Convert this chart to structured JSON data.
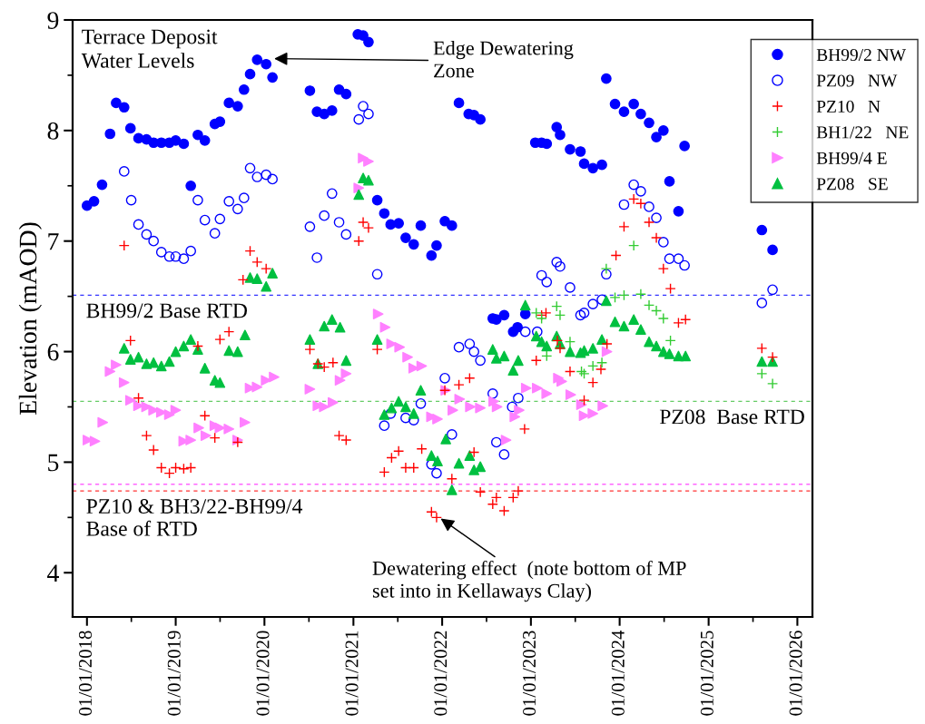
{
  "chart_data": {
    "type": "scatter",
    "ylabel": "Elevation (mAOD)",
    "xlim": [
      "2017-11-03",
      "2026-03-04"
    ],
    "ylim": [
      3.6,
      9
    ],
    "xticks": [
      {
        "value": "2018-01-01",
        "label": "01/01/2018"
      },
      {
        "value": "2019-01-01",
        "label": "01/01/2019"
      },
      {
        "value": "2020-01-01",
        "label": "01/01/2020"
      },
      {
        "value": "2021-01-01",
        "label": "01/01/2021"
      },
      {
        "value": "2022-01-01",
        "label": "01/01/2022"
      },
      {
        "value": "2023-01-01",
        "label": "01/01/2023"
      },
      {
        "value": "2024-01-01",
        "label": "01/01/2024"
      },
      {
        "value": "2025-01-01",
        "label": "01/01/2025"
      },
      {
        "value": "2026-01-01",
        "label": "01/01/2026"
      }
    ],
    "yticks": [
      4,
      5,
      6,
      7,
      8,
      9
    ],
    "grid": false,
    "legend": "top right",
    "series": [
      {
        "name": "BH99/2 NW",
        "color": "#0000ff",
        "marker": "circle",
        "x": [
          "2018-01-01",
          "2018-01-30",
          "2018-03-04",
          "2018-04-06",
          "2018-05-01",
          "2018-06-03",
          "2018-06-29",
          "2018-08-01",
          "2018-09-03",
          "2018-10-02",
          "2018-11-03",
          "2018-12-06",
          "2019-01-01",
          "2019-02-03",
          "2019-03-04",
          "2019-04-02",
          "2019-05-01",
          "2019-06-11",
          "2019-07-02",
          "2019-08-08",
          "2019-09-13",
          "2019-10-09",
          "2019-11-03",
          "2019-12-02",
          "2020-01-08",
          "2020-02-03",
          "2020-07-06",
          "2020-08-04",
          "2020-09-03",
          "2020-10-05",
          "2020-11-03",
          "2020-12-02",
          "2021-01-19",
          "2021-02-10",
          "2021-03-04",
          "2021-04-09",
          "2021-05-08",
          "2021-06-03",
          "2021-07-06",
          "2021-08-04",
          "2021-09-06",
          "2021-10-05",
          "2021-11-18",
          "2021-12-09",
          "2022-01-12",
          "2022-02-10",
          "2022-03-11",
          "2022-04-20",
          "2022-05-12",
          "2022-06-07",
          "2022-07-28",
          "2022-08-12",
          "2022-09-13",
          "2022-10-20",
          "2022-11-07",
          "2022-12-09",
          "2023-01-19",
          "2023-02-14",
          "2023-03-07",
          "2023-04-17",
          "2023-05-01",
          "2023-06-11",
          "2023-07-24",
          "2023-08-08",
          "2023-09-13",
          "2023-10-20",
          "2023-11-07",
          "2023-12-13",
          "2024-01-19",
          "2024-02-28",
          "2024-03-28",
          "2024-05-01",
          "2024-05-31",
          "2024-06-29",
          "2024-07-24",
          "2024-08-30",
          "2024-09-24",
          "2025-08-08",
          "2025-09-21"
        ],
        "values": [
          7.32,
          7.36,
          7.51,
          7.97,
          8.25,
          8.21,
          8.02,
          7.93,
          7.92,
          7.89,
          7.89,
          7.89,
          7.91,
          7.88,
          7.5,
          7.96,
          7.91,
          8.06,
          8.08,
          8.25,
          8.22,
          8.37,
          8.51,
          8.64,
          8.6,
          8.48,
          8.36,
          8.17,
          8.15,
          8.18,
          8.37,
          8.33,
          8.87,
          8.86,
          8.8,
          7.37,
          7.25,
          7.15,
          7.16,
          7.03,
          6.97,
          7.14,
          6.87,
          6.96,
          7.18,
          7.14,
          8.25,
          8.15,
          8.14,
          8.1,
          6.3,
          6.29,
          6.33,
          6.18,
          6.22,
          6.34,
          7.89,
          7.89,
          7.88,
          8.03,
          7.96,
          7.83,
          7.81,
          7.7,
          7.66,
          7.69,
          8.47,
          8.24,
          8.17,
          8.24,
          8.15,
          8.07,
          7.94,
          8.0,
          7.54,
          7.27,
          7.86,
          7.1,
          6.92
        ]
      },
      {
        "name": "PZ09   NW",
        "color": "#0000ff",
        "marker": "circle-open",
        "x": [
          "2018-06-03",
          "2018-07-02",
          "2018-08-01",
          "2018-09-03",
          "2018-10-02",
          "2018-11-03",
          "2018-12-06",
          "2019-01-01",
          "2019-02-03",
          "2019-03-04",
          "2019-04-02",
          "2019-05-01",
          "2019-06-11",
          "2019-07-02",
          "2019-08-08",
          "2019-09-13",
          "2019-10-09",
          "2019-11-03",
          "2019-12-02",
          "2020-01-08",
          "2020-02-03",
          "2020-07-06",
          "2020-08-04",
          "2020-09-03",
          "2020-10-05",
          "2020-11-03",
          "2020-12-02",
          "2021-01-23",
          "2021-02-10",
          "2021-03-04",
          "2021-04-09",
          "2021-05-08",
          "2021-06-03",
          "2021-08-04",
          "2021-09-06",
          "2021-10-05",
          "2021-11-18",
          "2021-12-09",
          "2022-01-12",
          "2022-02-10",
          "2022-03-11",
          "2022-04-24",
          "2022-05-12",
          "2022-06-07",
          "2022-07-28",
          "2022-08-12",
          "2022-09-13",
          "2022-10-16",
          "2022-11-10",
          "2022-12-09",
          "2023-01-27",
          "2023-02-14",
          "2023-03-07",
          "2023-04-17",
          "2023-05-01",
          "2023-06-11",
          "2023-07-24",
          "2023-08-08",
          "2023-09-13",
          "2023-10-20",
          "2023-11-07",
          "2024-01-19",
          "2024-02-28",
          "2024-03-28",
          "2024-05-01",
          "2024-05-31",
          "2024-06-29",
          "2024-07-24",
          "2024-08-30",
          "2024-09-24",
          "2025-08-08",
          "2025-09-21"
        ],
        "values": [
          7.63,
          7.37,
          7.15,
          7.06,
          7.0,
          6.9,
          6.86,
          6.86,
          6.84,
          6.91,
          7.37,
          7.19,
          7.07,
          7.2,
          7.36,
          7.29,
          7.39,
          7.66,
          7.58,
          7.6,
          7.56,
          7.13,
          6.85,
          7.23,
          7.43,
          7.17,
          7.06,
          8.1,
          8.22,
          8.15,
          6.7,
          5.33,
          5.44,
          5.4,
          5.38,
          5.53,
          4.98,
          4.9,
          5.76,
          5.25,
          6.04,
          6.07,
          6.0,
          5.92,
          5.62,
          5.18,
          5.07,
          5.5,
          5.58,
          6.18,
          6.18,
          6.69,
          6.63,
          6.81,
          6.77,
          6.58,
          6.33,
          6.35,
          6.43,
          6.47,
          6.7,
          7.33,
          7.51,
          7.45,
          7.31,
          7.21,
          6.99,
          6.84,
          6.84,
          6.78,
          6.44,
          6.56
        ]
      },
      {
        "name": "PZ10   N",
        "color": "#ff0000",
        "marker": "cross",
        "x": [
          "2018-06-03",
          "2018-06-29",
          "2018-08-01",
          "2018-09-03",
          "2018-10-02",
          "2018-11-03",
          "2018-12-06",
          "2019-01-01",
          "2019-02-03",
          "2019-03-04",
          "2019-04-02",
          "2019-05-01",
          "2019-06-11",
          "2019-07-02",
          "2019-08-08",
          "2019-09-13",
          "2019-10-05",
          "2019-11-03",
          "2019-12-02",
          "2020-01-08",
          "2020-07-06",
          "2020-08-08",
          "2020-09-03",
          "2020-10-09",
          "2020-11-03",
          "2020-12-02",
          "2021-01-23",
          "2021-02-10",
          "2021-03-04",
          "2021-04-09",
          "2021-05-08",
          "2021-06-07",
          "2021-07-06",
          "2021-08-04",
          "2021-09-06",
          "2021-10-09",
          "2021-11-18",
          "2021-12-09",
          "2022-01-12",
          "2022-02-10",
          "2022-03-11",
          "2022-04-24",
          "2022-05-12",
          "2022-06-07",
          "2022-07-28",
          "2022-08-12",
          "2022-09-13",
          "2022-10-20",
          "2022-11-10",
          "2022-12-06",
          "2023-01-23",
          "2023-02-14",
          "2023-03-04",
          "2023-04-20",
          "2023-05-01",
          "2023-06-11",
          "2023-08-08",
          "2023-09-13",
          "2023-10-16",
          "2023-11-10",
          "2023-12-17",
          "2024-01-19",
          "2024-02-28",
          "2024-03-28",
          "2024-05-01",
          "2024-05-31",
          "2024-06-29",
          "2024-07-28",
          "2024-08-30",
          "2024-09-28",
          "2025-08-08",
          "2025-09-21"
        ],
        "values": [
          6.96,
          6.1,
          5.58,
          5.24,
          5.11,
          4.95,
          4.9,
          4.95,
          4.94,
          4.95,
          6.05,
          5.42,
          5.22,
          6.11,
          6.18,
          5.18,
          6.65,
          6.91,
          6.81,
          6.75,
          6.02,
          5.89,
          5.86,
          5.9,
          5.24,
          5.2,
          7.0,
          7.17,
          7.12,
          6.02,
          4.91,
          5.04,
          5.1,
          4.95,
          4.95,
          5.12,
          4.55,
          4.5,
          5.65,
          4.85,
          5.7,
          5.76,
          5.09,
          4.73,
          4.62,
          4.68,
          4.56,
          4.68,
          4.74,
          5.3,
          5.92,
          6.33,
          6.35,
          6.1,
          6.03,
          5.82,
          5.56,
          5.72,
          5.84,
          6.07,
          6.87,
          7.13,
          7.38,
          7.34,
          7.17,
          7.03,
          6.75,
          6.57,
          6.26,
          6.29,
          6.03,
          5.95
        ]
      },
      {
        "name": "BH1/22   NE",
        "color": "#33cc33",
        "marker": "cross",
        "x": [
          "2023-01-23",
          "2023-02-14",
          "2023-03-07",
          "2023-04-17",
          "2023-05-01",
          "2023-06-11",
          "2023-07-28",
          "2023-08-08",
          "2023-09-13",
          "2023-10-20",
          "2023-11-07",
          "2023-12-13",
          "2024-01-19",
          "2024-02-28",
          "2024-03-28",
          "2024-05-01",
          "2024-05-31",
          "2024-06-29",
          "2024-07-28",
          "2025-08-08",
          "2025-09-21"
        ],
        "values": [
          6.35,
          6.3,
          5.96,
          6.41,
          6.33,
          6.09,
          5.82,
          5.8,
          5.87,
          5.9,
          6.75,
          6.49,
          6.51,
          6.96,
          6.52,
          6.42,
          6.37,
          6.3,
          6.1,
          5.8,
          5.71
        ]
      },
      {
        "name": "BH99/4 E",
        "color": "#ff80ff",
        "marker": "triangle-right",
        "x": [
          "2018-01-05",
          "2018-02-03",
          "2018-03-07",
          "2018-04-06",
          "2018-05-01",
          "2018-06-03",
          "2018-06-29",
          "2018-08-01",
          "2018-09-03",
          "2018-10-02",
          "2018-11-03",
          "2018-12-06",
          "2019-01-01",
          "2019-02-03",
          "2019-03-04",
          "2019-04-06",
          "2019-05-05",
          "2019-06-11",
          "2019-07-02",
          "2019-08-08",
          "2019-09-13",
          "2019-10-13",
          "2019-11-03",
          "2019-12-02",
          "2020-01-08",
          "2020-02-10",
          "2020-07-06",
          "2020-08-08",
          "2020-09-03",
          "2020-10-09",
          "2020-11-07",
          "2020-12-02",
          "2021-01-23",
          "2021-02-10",
          "2021-03-04",
          "2021-04-13",
          "2021-05-12",
          "2021-06-07",
          "2021-07-10",
          "2021-08-12",
          "2021-09-06",
          "2021-10-09",
          "2021-11-18",
          "2021-12-13",
          "2022-01-16",
          "2022-02-14",
          "2022-03-14",
          "2022-04-27",
          "2022-06-07",
          "2022-08-01",
          "2022-08-15",
          "2022-09-21",
          "2022-10-27",
          "2022-11-14",
          "2022-12-13",
          "2023-01-27",
          "2023-03-07",
          "2023-04-24",
          "2023-05-08",
          "2023-06-14",
          "2023-07-28",
          "2023-08-08",
          "2023-09-13",
          "2023-10-24",
          "2023-11-10"
        ],
        "values": [
          5.2,
          5.19,
          5.36,
          5.82,
          5.88,
          5.72,
          5.56,
          5.51,
          5.5,
          5.47,
          5.45,
          5.43,
          5.47,
          5.19,
          5.2,
          5.31,
          5.24,
          5.33,
          5.31,
          5.3,
          5.2,
          5.36,
          5.67,
          5.68,
          5.74,
          5.77,
          5.66,
          5.51,
          5.5,
          5.54,
          5.74,
          5.8,
          7.48,
          7.75,
          7.72,
          6.34,
          6.22,
          6.07,
          6.04,
          5.95,
          5.85,
          5.87,
          5.41,
          5.39,
          5.65,
          5.47,
          5.57,
          5.5,
          5.49,
          5.55,
          5.5,
          5.2,
          5.41,
          5.47,
          5.67,
          5.67,
          5.62,
          5.76,
          5.73,
          5.61,
          5.52,
          5.42,
          5.44,
          5.51,
          6.0
        ]
      },
      {
        "name": "PZ08   SE",
        "color": "#00c040",
        "marker": "triangle",
        "x": [
          "2018-06-03",
          "2018-06-29",
          "2018-08-01",
          "2018-09-03",
          "2018-10-02",
          "2018-11-03",
          "2018-12-06",
          "2019-01-01",
          "2019-02-03",
          "2019-03-04",
          "2019-04-02",
          "2019-05-01",
          "2019-06-11",
          "2019-07-02",
          "2019-08-08",
          "2019-09-13",
          "2019-10-13",
          "2019-11-03",
          "2019-12-02",
          "2020-01-08",
          "2020-02-03",
          "2020-07-06",
          "2020-08-08",
          "2020-09-03",
          "2020-10-05",
          "2020-11-07",
          "2020-12-02",
          "2021-01-23",
          "2021-02-10",
          "2021-03-04",
          "2021-04-09",
          "2021-05-08",
          "2021-06-07",
          "2021-07-06",
          "2021-08-04",
          "2021-09-06",
          "2021-10-05",
          "2021-11-18",
          "2021-12-13",
          "2022-01-16",
          "2022-02-10",
          "2022-03-11",
          "2022-04-24",
          "2022-05-12",
          "2022-06-07",
          "2022-07-28",
          "2022-08-12",
          "2022-09-13",
          "2022-10-20",
          "2022-11-10",
          "2022-12-09",
          "2023-01-23",
          "2023-02-14",
          "2023-03-07",
          "2023-04-17",
          "2023-05-01",
          "2023-06-11",
          "2023-07-24",
          "2023-08-08",
          "2023-09-13",
          "2023-10-20",
          "2023-11-07",
          "2023-12-13",
          "2024-01-19",
          "2024-02-28",
          "2024-03-28",
          "2024-05-01",
          "2024-05-31",
          "2024-06-29",
          "2024-07-24",
          "2024-08-30",
          "2024-09-28",
          "2025-08-08",
          "2025-09-21"
        ],
        "values": [
          6.03,
          5.93,
          5.95,
          5.89,
          5.9,
          5.87,
          5.91,
          6.0,
          6.05,
          6.11,
          6.02,
          5.85,
          5.74,
          5.72,
          6.01,
          6.0,
          6.15,
          6.67,
          6.66,
          6.59,
          6.71,
          6.11,
          5.89,
          6.23,
          6.29,
          6.22,
          5.92,
          7.42,
          7.57,
          7.55,
          6.11,
          5.43,
          5.49,
          5.55,
          5.5,
          5.44,
          5.65,
          5.06,
          5.01,
          5.21,
          4.75,
          4.99,
          5.06,
          4.93,
          4.96,
          6.02,
          5.94,
          5.96,
          5.83,
          5.92,
          6.42,
          6.14,
          6.09,
          6.05,
          6.14,
          6.07,
          6.0,
          5.99,
          6.01,
          6.03,
          6.11,
          6.46,
          6.27,
          6.23,
          6.29,
          6.2,
          6.09,
          6.05,
          6.0,
          5.98,
          5.96,
          5.96,
          5.91,
          5.91
        ]
      }
    ],
    "ref_lines": [
      {
        "axis": "y",
        "value": 6.51,
        "label": "BH99/2 Base RTD",
        "color": "#3333ff",
        "line_style": "dashed"
      },
      {
        "axis": "y",
        "value": 5.55,
        "label": "PZ08  Base RTD",
        "color": "#66cc66",
        "line_style": "dashed"
      },
      {
        "axis": "y",
        "value": 4.8,
        "label": null,
        "color": "#ff66ff",
        "line_style": "dashed"
      },
      {
        "axis": "y",
        "value": 4.74,
        "label": "PZ10 & BH3/22-BH99/4\nBase of RTD",
        "color": "#ff3333",
        "line_style": "dashed"
      }
    ],
    "annotations": [
      "Terrace Deposit\nWater Levels",
      {
        "text": "Edge Dewatering\nZone",
        "x": "2020-02-10",
        "y": 8.65
      },
      {
        "text": "Dewatering effect  (note bottom of MP\nset into in Kellaways Clay)",
        "x": "2021-11-18",
        "y": 4.55
      }
    ]
  }
}
